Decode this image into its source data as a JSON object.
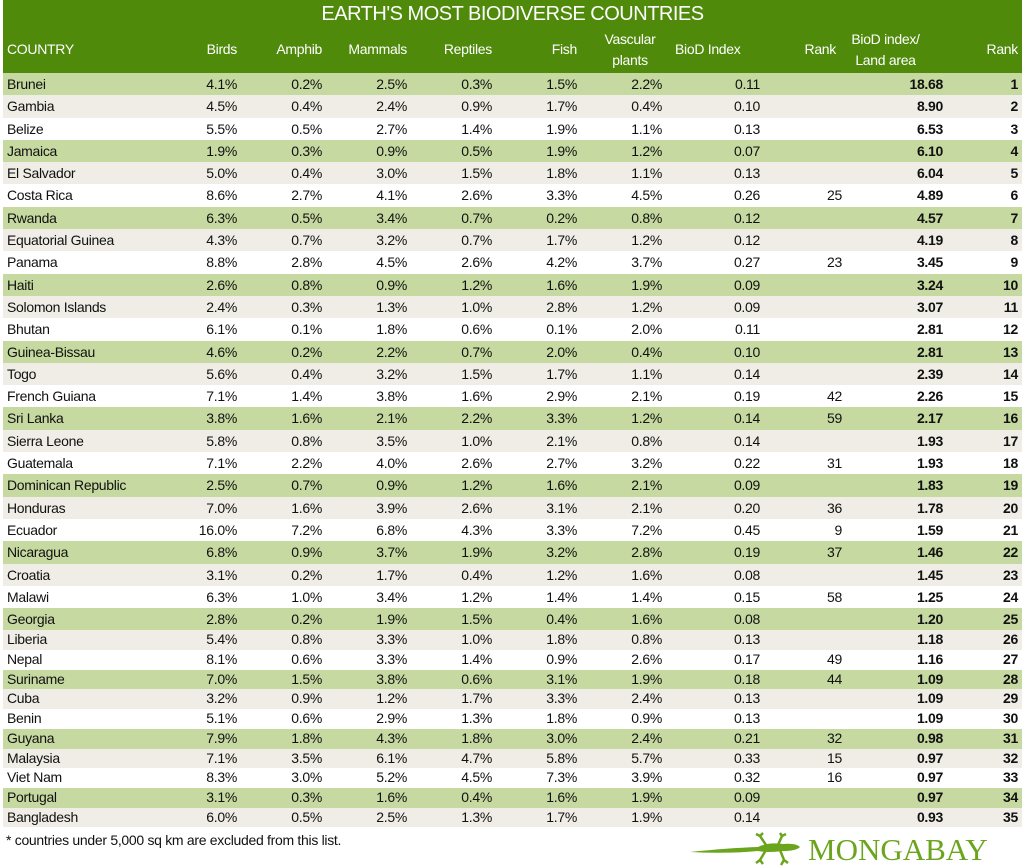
{
  "title": "EARTH'S MOST BIODIVERSE COUNTRIES",
  "columns": {
    "country": "COUNTRY",
    "birds": "Birds",
    "amphib": "Amphib",
    "mammals": "Mammals",
    "reptiles": "Reptiles",
    "fish": "Fish",
    "vascular_1": "Vascular",
    "vascular_2": "plants",
    "biod": "BioD Index",
    "rank": "Rank",
    "biod_land_1": "BioD index/",
    "biod_land_2": "Land area",
    "rank2": "Rank"
  },
  "rows": [
    [
      "Brunei",
      "4.1%",
      "0.2%",
      "2.5%",
      "0.3%",
      "1.5%",
      "2.2%",
      "0.11",
      "",
      "18.68",
      "1"
    ],
    [
      "Gambia",
      "4.5%",
      "0.4%",
      "2.4%",
      "0.9%",
      "1.7%",
      "0.4%",
      "0.10",
      "",
      "8.90",
      "2"
    ],
    [
      "Belize",
      "5.5%",
      "0.5%",
      "2.7%",
      "1.4%",
      "1.9%",
      "1.1%",
      "0.13",
      "",
      "6.53",
      "3"
    ],
    [
      "Jamaica",
      "1.9%",
      "0.3%",
      "0.9%",
      "0.5%",
      "1.9%",
      "1.2%",
      "0.07",
      "",
      "6.10",
      "4"
    ],
    [
      "El Salvador",
      "5.0%",
      "0.4%",
      "3.0%",
      "1.5%",
      "1.8%",
      "1.1%",
      "0.13",
      "",
      "6.04",
      "5"
    ],
    [
      "Costa Rica",
      "8.6%",
      "2.7%",
      "4.1%",
      "2.6%",
      "3.3%",
      "4.5%",
      "0.26",
      "25",
      "4.89",
      "6"
    ],
    [
      "Rwanda",
      "6.3%",
      "0.5%",
      "3.4%",
      "0.7%",
      "0.2%",
      "0.8%",
      "0.12",
      "",
      "4.57",
      "7"
    ],
    [
      "Equatorial Guinea",
      "4.3%",
      "0.7%",
      "3.2%",
      "0.7%",
      "1.7%",
      "1.2%",
      "0.12",
      "",
      "4.19",
      "8"
    ],
    [
      "Panama",
      "8.8%",
      "2.8%",
      "4.5%",
      "2.6%",
      "4.2%",
      "3.7%",
      "0.27",
      "23",
      "3.45",
      "9"
    ],
    [
      "Haiti",
      "2.6%",
      "0.8%",
      "0.9%",
      "1.2%",
      "1.6%",
      "1.9%",
      "0.09",
      "",
      "3.24",
      "10"
    ],
    [
      "Solomon Islands",
      "2.4%",
      "0.3%",
      "1.3%",
      "1.0%",
      "2.8%",
      "1.2%",
      "0.09",
      "",
      "3.07",
      "11"
    ],
    [
      "Bhutan",
      "6.1%",
      "0.1%",
      "1.8%",
      "0.6%",
      "0.1%",
      "2.0%",
      "0.11",
      "",
      "2.81",
      "12"
    ],
    [
      "Guinea-Bissau",
      "4.6%",
      "0.2%",
      "2.2%",
      "0.7%",
      "2.0%",
      "0.4%",
      "0.10",
      "",
      "2.81",
      "13"
    ],
    [
      "Togo",
      "5.6%",
      "0.4%",
      "3.2%",
      "1.5%",
      "1.7%",
      "1.1%",
      "0.14",
      "",
      "2.39",
      "14"
    ],
    [
      "French Guiana",
      "7.1%",
      "1.4%",
      "3.8%",
      "1.6%",
      "2.9%",
      "2.1%",
      "0.19",
      "42",
      "2.26",
      "15"
    ],
    [
      "Sri Lanka",
      "3.8%",
      "1.6%",
      "2.1%",
      "2.2%",
      "3.3%",
      "1.2%",
      "0.14",
      "59",
      "2.17",
      "16"
    ],
    [
      "Sierra Leone",
      "5.8%",
      "0.8%",
      "3.5%",
      "1.0%",
      "2.1%",
      "0.8%",
      "0.14",
      "",
      "1.93",
      "17"
    ],
    [
      "Guatemala",
      "7.1%",
      "2.2%",
      "4.0%",
      "2.6%",
      "2.7%",
      "3.2%",
      "0.22",
      "31",
      "1.93",
      "18"
    ],
    [
      "Dominican Republic",
      "2.5%",
      "0.7%",
      "0.9%",
      "1.2%",
      "1.6%",
      "2.1%",
      "0.09",
      "",
      "1.83",
      "19"
    ],
    [
      "Honduras",
      "7.0%",
      "1.6%",
      "3.9%",
      "2.6%",
      "3.1%",
      "2.1%",
      "0.20",
      "36",
      "1.78",
      "20"
    ],
    [
      "Ecuador",
      "16.0%",
      "7.2%",
      "6.8%",
      "4.3%",
      "3.3%",
      "7.2%",
      "0.45",
      "9",
      "1.59",
      "21"
    ],
    [
      "Nicaragua",
      "6.8%",
      "0.9%",
      "3.7%",
      "1.9%",
      "3.2%",
      "2.8%",
      "0.19",
      "37",
      "1.46",
      "22"
    ],
    [
      "Croatia",
      "3.1%",
      "0.2%",
      "1.7%",
      "0.4%",
      "1.2%",
      "1.6%",
      "0.08",
      "",
      "1.45",
      "23"
    ],
    [
      "Malawi",
      "6.3%",
      "1.0%",
      "3.4%",
      "1.2%",
      "1.4%",
      "1.4%",
      "0.15",
      "58",
      "1.25",
      "24"
    ],
    [
      "Georgia",
      "2.8%",
      "0.2%",
      "1.9%",
      "1.5%",
      "0.4%",
      "1.6%",
      "0.08",
      "",
      "1.20",
      "25"
    ],
    [
      "Liberia",
      "5.4%",
      "0.8%",
      "3.3%",
      "1.0%",
      "1.8%",
      "0.8%",
      "0.13",
      "",
      "1.18",
      "26"
    ],
    [
      "Nepal",
      "8.1%",
      "0.6%",
      "3.3%",
      "1.4%",
      "0.9%",
      "2.6%",
      "0.17",
      "49",
      "1.16",
      "27"
    ],
    [
      "Suriname",
      "7.0%",
      "1.5%",
      "3.8%",
      "0.6%",
      "3.1%",
      "1.9%",
      "0.18",
      "44",
      "1.09",
      "28"
    ],
    [
      "Cuba",
      "3.2%",
      "0.9%",
      "1.2%",
      "1.7%",
      "3.3%",
      "2.4%",
      "0.13",
      "",
      "1.09",
      "29"
    ],
    [
      "Benin",
      "5.1%",
      "0.6%",
      "2.9%",
      "1.3%",
      "1.8%",
      "0.9%",
      "0.13",
      "",
      "1.09",
      "30"
    ],
    [
      "Guyana",
      "7.9%",
      "1.8%",
      "4.3%",
      "1.8%",
      "3.0%",
      "2.4%",
      "0.21",
      "32",
      "0.98",
      "31"
    ],
    [
      "Malaysia",
      "7.1%",
      "3.5%",
      "6.1%",
      "4.7%",
      "5.8%",
      "5.7%",
      "0.33",
      "15",
      "0.97",
      "32"
    ],
    [
      "Viet Nam",
      "8.3%",
      "3.0%",
      "5.2%",
      "4.5%",
      "7.3%",
      "3.9%",
      "0.32",
      "16",
      "0.97",
      "33"
    ],
    [
      "Portugal",
      "3.1%",
      "0.3%",
      "1.6%",
      "0.4%",
      "1.6%",
      "1.9%",
      "0.09",
      "",
      "0.97",
      "34"
    ],
    [
      "Bangladesh",
      "6.0%",
      "0.5%",
      "2.5%",
      "1.3%",
      "1.7%",
      "1.9%",
      "0.14",
      "",
      "0.93",
      "35"
    ]
  ],
  "footnote": "* countries under 5,000 sq km are excluded from this list.",
  "logo": "MONGABAY",
  "colors": {
    "header": "#4f8a0b",
    "row_green": "#c6d9a0",
    "row_beige": "#efede6",
    "row_white": "#ffffff",
    "logo": "#6aa51d"
  }
}
